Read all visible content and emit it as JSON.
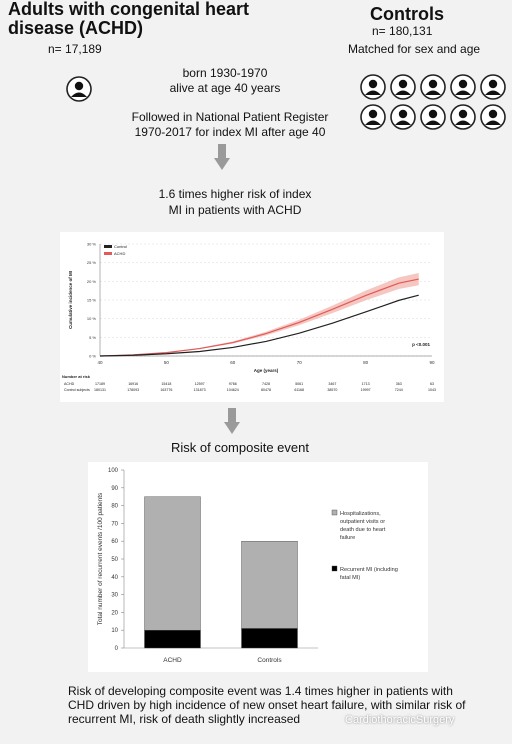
{
  "header": {
    "achd_title": "Adults with congenital heart disease  (ACHD)",
    "achd_n": "n= 17,189",
    "controls_title": "Controls",
    "controls_n": "n= 180,131",
    "matched": "Matched for sex and age"
  },
  "steps": {
    "born_line1": "born 1930-1970",
    "born_line2": "alive at age 40 years",
    "followed_line1": "Followed in National Patient Register",
    "followed_line2": "1970-2017 for index MI after age 40",
    "risk1_line1": "1.6 times higher risk of  index",
    "risk1_line2": "MI in patients with ACHD",
    "risk2": "Risk of composite event"
  },
  "conclusion": "Risk of developing composite event was 1.4 times higher in patients with CHD driven by high incidence of new onset heart failure, with similar risk of recurrent MI, risk of death slightly increased",
  "watermark": "CardiothoracicSurgery",
  "colors": {
    "achd_line": "#e05a5a",
    "achd_band": "#f4b8b0",
    "control_line": "#222222",
    "hf_bar": "#b0b0b0",
    "mi_bar": "#000000"
  },
  "chart_data": [
    {
      "type": "line",
      "title": "",
      "xlabel": "Age (years)",
      "ylabel": "Cumulative incidence of MI",
      "xlim": [
        40,
        90
      ],
      "ylim": [
        0,
        30
      ],
      "xticks": [
        "40",
        "50",
        "60",
        "70",
        "80",
        "90"
      ],
      "yticks": [
        "0 %",
        "5 %",
        "10 %",
        "15 %",
        "20 %",
        "25 %",
        "30 %"
      ],
      "annotation": "p <0.001",
      "legend": [
        "Control",
        "ACHD"
      ],
      "legend_position": "top-left",
      "series": [
        {
          "name": "ACHD",
          "x": [
            40,
            45,
            50,
            55,
            60,
            65,
            70,
            75,
            80,
            85,
            88
          ],
          "y": [
            0,
            0.3,
            0.9,
            2.0,
            3.6,
            6.0,
            9.0,
            12.5,
            16.2,
            19.5,
            20.6
          ]
        },
        {
          "name": "Control",
          "x": [
            40,
            45,
            50,
            55,
            60,
            65,
            70,
            75,
            80,
            85,
            88
          ],
          "y": [
            0,
            0.2,
            0.6,
            1.2,
            2.3,
            3.9,
            6.1,
            8.8,
            11.8,
            14.9,
            16.3
          ]
        }
      ],
      "risk_table": {
        "label": "Number at risk",
        "rows": [
          {
            "name": "ACHD",
            "values": [
              "17189",
              "16916",
              "15418",
              "12597",
              "9766",
              "7428",
              "5061",
              "3467",
              "1713",
              "363",
              "63"
            ]
          },
          {
            "name": "Control subjects",
            "values": [
              "180131",
              "178093",
              "163776",
              "131873",
              "104624",
              "80478",
              "61168",
              "38570",
              "19997",
              "7244",
              "1043"
            ]
          }
        ]
      }
    },
    {
      "type": "bar",
      "stacked": true,
      "title": "",
      "xlabel": "",
      "ylabel": "Total number of recurrent events /100 patients",
      "ylim": [
        0,
        100
      ],
      "yticks": [
        "0",
        "10",
        "20",
        "30",
        "40",
        "50",
        "60",
        "70",
        "80",
        "90",
        "100"
      ],
      "categories": [
        "ACHD",
        "Controls"
      ],
      "legend_position": "right",
      "series": [
        {
          "name": "Recurrent MI (including fatal MI)",
          "values": [
            10,
            11
          ]
        },
        {
          "name": "Hospitalizations, outpatient visits or death due to heart failure",
          "values": [
            75,
            49
          ]
        }
      ]
    }
  ]
}
